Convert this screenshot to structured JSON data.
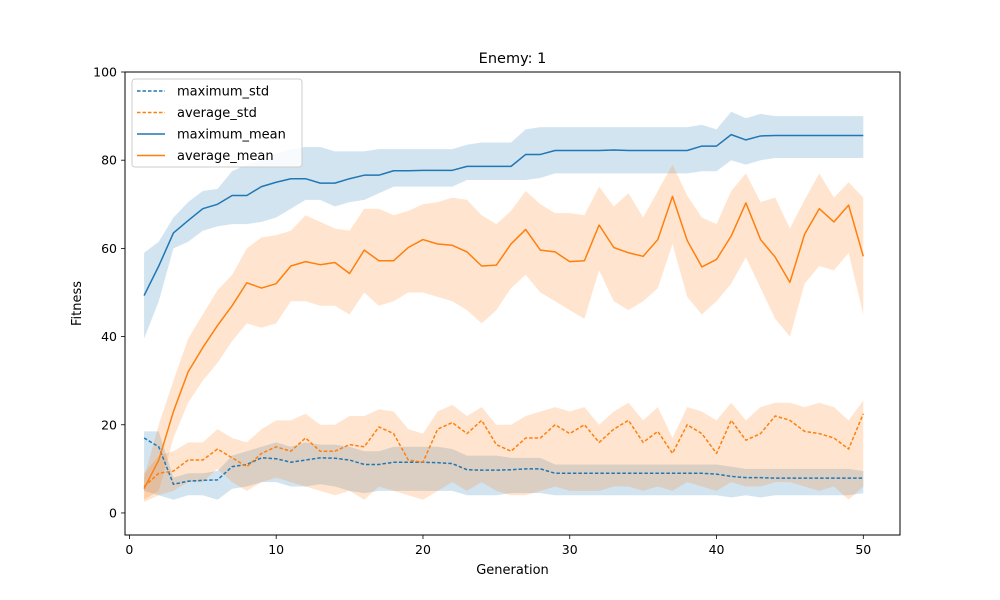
{
  "chart_data": {
    "type": "line",
    "title": "Enemy: 1",
    "xlabel": "Generation",
    "ylabel": "Fitness",
    "xlim": [
      -0.3,
      52.5
    ],
    "ylim": [
      -5,
      100
    ],
    "xticks": [
      0,
      10,
      20,
      30,
      40,
      50
    ],
    "yticks": [
      0,
      20,
      40,
      60,
      80,
      100
    ],
    "legend_position": "top-left",
    "x": [
      1,
      2,
      3,
      4,
      5,
      6,
      7,
      8,
      9,
      10,
      11,
      12,
      13,
      14,
      15,
      16,
      17,
      18,
      19,
      20,
      21,
      22,
      23,
      24,
      25,
      26,
      27,
      28,
      29,
      30,
      31,
      32,
      33,
      34,
      35,
      36,
      37,
      38,
      39,
      40,
      41,
      42,
      43,
      44,
      45,
      46,
      47,
      48,
      49,
      50
    ],
    "series": [
      {
        "name": "maximum_std",
        "color": "#1f77b4",
        "style": "dashed",
        "values": [
          17,
          15,
          6.5,
          7.2,
          7.4,
          7.5,
          10.5,
          11,
          12.5,
          12.3,
          11.5,
          12,
          12.5,
          12.4,
          12,
          11,
          11,
          11.5,
          11.5,
          11.5,
          11.4,
          11.2,
          9.8,
          9.7,
          9.7,
          9.8,
          10,
          10,
          9,
          9,
          9,
          9,
          9,
          9,
          9,
          9,
          9,
          9,
          9,
          8.8,
          8.3,
          8,
          8,
          7.9,
          7.9,
          7.9,
          7.9,
          7.9,
          7.9,
          7.9
        ],
        "band_low": [
          5,
          4,
          3,
          4,
          4,
          3,
          5.5,
          6,
          7,
          7,
          6,
          6,
          6.5,
          6,
          5,
          4.5,
          5,
          5,
          5,
          5,
          5,
          5,
          4,
          4,
          4,
          4.5,
          4.5,
          4.5,
          4,
          4,
          4,
          4,
          4,
          4,
          4,
          4,
          4,
          4,
          4,
          4,
          3.5,
          4,
          3.5,
          4,
          4,
          4,
          4,
          4,
          4,
          4.5
        ],
        "band_high": [
          18.5,
          18.5,
          8,
          9,
          9,
          9.5,
          13,
          14,
          15,
          16,
          15,
          16,
          15.5,
          15.5,
          15,
          14,
          14,
          15,
          15,
          15,
          15,
          14.5,
          13,
          13,
          13,
          12.5,
          12.5,
          12.5,
          11,
          11,
          11,
          11,
          11,
          11,
          11,
          11,
          11,
          11,
          11,
          11,
          10.5,
          10,
          10,
          10,
          10,
          10,
          10,
          10,
          10,
          9.5
        ]
      },
      {
        "name": "average_std",
        "color": "#ff7f0e",
        "style": "dashed",
        "values": [
          6,
          9,
          9.5,
          12,
          12,
          14.5,
          12.5,
          10.5,
          13.5,
          15,
          14,
          17,
          14,
          14,
          15.5,
          15,
          19.5,
          18,
          12,
          11.5,
          19,
          20.5,
          18,
          21,
          15.5,
          14,
          17,
          17,
          20,
          18,
          20,
          16,
          19,
          21,
          16,
          18.5,
          13.5,
          20,
          18,
          13.5,
          21,
          16.5,
          18,
          22,
          21,
          18.5,
          18,
          17,
          14.5,
          22.5
        ],
        "band_low": [
          2.5,
          4,
          5,
          7,
          7,
          10,
          7,
          5,
          7,
          8,
          7,
          6,
          5,
          4,
          5,
          3,
          6,
          5,
          4,
          3,
          5,
          7,
          5,
          7,
          5,
          4,
          4,
          5,
          6,
          5,
          5,
          5,
          6,
          6,
          5,
          6,
          5,
          7,
          6,
          5,
          7,
          6,
          6,
          7,
          7,
          6,
          5,
          6,
          3,
          6
        ],
        "band_high": [
          9,
          13,
          14,
          16,
          16,
          19,
          17,
          16,
          19,
          21,
          21,
          22.5,
          20,
          20,
          22,
          22,
          23.5,
          23,
          19,
          18,
          23,
          24.5,
          22,
          24,
          20,
          20,
          22,
          23,
          24,
          23,
          24,
          20,
          23,
          25,
          21,
          24,
          17,
          24,
          23,
          21,
          25,
          21,
          24,
          25,
          25,
          24,
          25,
          24,
          21,
          25.5
        ]
      },
      {
        "name": "maximum_mean",
        "color": "#1f77b4",
        "style": "solid",
        "values": [
          49.3,
          56,
          63.5,
          66.3,
          69,
          70,
          72,
          72,
          74,
          75,
          75.8,
          75.8,
          74.8,
          74.8,
          75.8,
          76.6,
          76.6,
          77.6,
          77.6,
          77.7,
          77.7,
          77.7,
          78.6,
          78.6,
          78.6,
          78.6,
          81.3,
          81.3,
          82.2,
          82.2,
          82.2,
          82.2,
          82.3,
          82.2,
          82.2,
          82.2,
          82.2,
          82.2,
          83.2,
          83.2,
          85.8,
          84.6,
          85.5,
          85.6,
          85.6,
          85.6,
          85.6,
          85.6,
          85.6,
          85.6
        ],
        "band_low": [
          39.5,
          48,
          60,
          61.5,
          64,
          65,
          65.5,
          65.5,
          66,
          67,
          69,
          71,
          71,
          69.5,
          70.5,
          71,
          72.5,
          74,
          74,
          74,
          74,
          74,
          75.5,
          75.5,
          75.5,
          75.5,
          75.5,
          76,
          77,
          77,
          77,
          77,
          77,
          77,
          77,
          77,
          77,
          77,
          77.5,
          77.5,
          80,
          79,
          80,
          80.5,
          80.5,
          80.5,
          80.5,
          80.5,
          80.5,
          80.5
        ],
        "band_high": [
          59,
          61.5,
          67,
          70.5,
          73,
          73.5,
          77.5,
          79,
          80,
          81.5,
          82.5,
          83,
          83,
          82,
          82,
          82,
          82.5,
          82.5,
          82.5,
          82.5,
          82.5,
          82.5,
          83.5,
          84,
          84,
          84,
          87,
          87.5,
          87.5,
          87.5,
          87.5,
          87.5,
          87.5,
          87.5,
          87.5,
          87.5,
          87.5,
          87.5,
          88,
          87,
          91,
          89.5,
          90.5,
          90,
          90,
          90,
          90,
          90,
          90,
          90
        ]
      },
      {
        "name": "average_mean",
        "color": "#ff7f0e",
        "style": "solid",
        "values": [
          5.5,
          12,
          23,
          32,
          37.5,
          42.5,
          47,
          52.2,
          51,
          52,
          56,
          57,
          56.3,
          56.8,
          54.3,
          59.6,
          57.2,
          57.2,
          60.2,
          62,
          61,
          60.7,
          59.2,
          56,
          56.2,
          61,
          64.3,
          59.6,
          59.2,
          57,
          57.2,
          65.3,
          60.2,
          59,
          58.2,
          62,
          71.8,
          61.8,
          55.8,
          57.5,
          62.8,
          70.3,
          62,
          58,
          52.3,
          63.2,
          69,
          66,
          69.8,
          58.2
        ],
        "band_low": [
          3,
          5,
          17,
          25,
          30,
          34,
          39,
          43,
          42,
          43,
          48,
          48,
          47,
          47,
          45,
          50,
          47,
          48,
          50,
          50,
          49,
          48,
          46,
          43,
          46,
          51,
          54,
          50,
          48,
          46,
          44,
          55,
          48,
          46,
          48,
          51,
          61,
          49,
          45,
          48,
          52,
          58,
          51,
          44,
          40,
          52,
          56,
          55,
          59,
          45
        ],
        "band_high": [
          8,
          20,
          30,
          39.5,
          45,
          50.5,
          54,
          60,
          62.5,
          63,
          64,
          67.5,
          66,
          64.5,
          64,
          69,
          69,
          67.5,
          68.5,
          70,
          70.5,
          71.5,
          71,
          67.5,
          65.5,
          68.5,
          73,
          70,
          68,
          68,
          67.5,
          74,
          69.5,
          72.5,
          67,
          73,
          79,
          72,
          67,
          65.5,
          73,
          77,
          70.5,
          71.5,
          64.5,
          71,
          77,
          71.5,
          75,
          71.5
        ]
      }
    ]
  }
}
